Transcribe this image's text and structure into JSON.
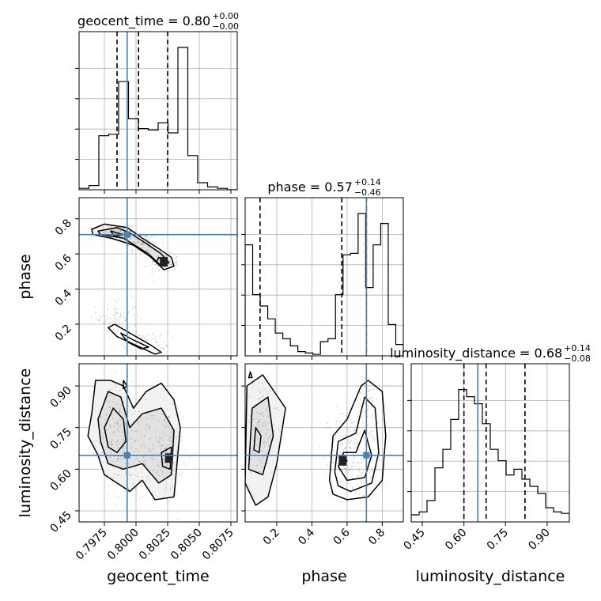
{
  "chart_data": {
    "type": "corner",
    "parameters": [
      "geocent_time",
      "phase",
      "luminosity_distance"
    ],
    "axis_labels": {
      "geocent_time": "geocent_time",
      "phase": "phase",
      "luminosity_distance": "luminosity_distance"
    },
    "titles": [
      {
        "param": "geocent_time",
        "name": "geocent_time",
        "median": "0.80",
        "plus": "+0.00",
        "minus": "−0.00"
      },
      {
        "param": "phase",
        "name": "phase",
        "median": "0.57",
        "plus": "+0.14",
        "minus": "−0.46"
      },
      {
        "param": "luminosity_distance",
        "name": "luminosity_distance",
        "median": "0.68",
        "plus": "+0.14",
        "minus": "−0.08"
      }
    ],
    "ranges": {
      "geocent_time": [
        0.7955,
        0.808
      ],
      "phase": [
        0.02,
        0.92
      ],
      "luminosity_distance": [
        0.41,
        0.98
      ]
    },
    "ticks": {
      "geocent_time": {
        "values": [
          0.7975,
          0.8,
          0.8025,
          0.805,
          0.8075
        ],
        "labels": [
          "0.7975",
          "0.8000",
          "0.8025",
          "0.8050",
          "0.8075"
        ]
      },
      "phase": {
        "values": [
          0.2,
          0.4,
          0.6,
          0.8
        ],
        "labels": [
          "0.2",
          "0.4",
          "0.6",
          "0.8"
        ]
      },
      "luminosity_distance": {
        "values": [
          0.45,
          0.6,
          0.75,
          0.9
        ],
        "labels": [
          "0.45",
          "0.60",
          "0.75",
          "0.90"
        ]
      }
    },
    "truths": {
      "geocent_time": 0.7993,
      "phase": 0.71,
      "luminosity_distance": 0.65
    },
    "quantiles": {
      "geocent_time": [
        0.7985,
        0.8002,
        0.8025
      ],
      "phase": [
        0.105,
        0.57,
        0.71
      ],
      "luminosity_distance": [
        0.6,
        0.68,
        0.82
      ]
    },
    "histograms": {
      "geocent_time": [
        0.01,
        0.03,
        0.38,
        0.39,
        0.76,
        0.5,
        0.43,
        0.42,
        0.47,
        0.4,
        1.0,
        0.24,
        0.05,
        0.02,
        0.01,
        0.0
      ],
      "phase": [
        0.78,
        0.43,
        0.35,
        0.26,
        0.16,
        0.12,
        0.07,
        0.03,
        0.02,
        0.01,
        0.1,
        0.12,
        0.43,
        0.71,
        0.72,
        1.0,
        0.48,
        0.78,
        0.93,
        0.22,
        0.08
      ],
      "luminosity_distance": [
        0.05,
        0.07,
        0.15,
        0.38,
        0.51,
        0.72,
        0.93,
        0.88,
        0.83,
        0.69,
        0.51,
        0.43,
        0.33,
        0.37,
        0.3,
        0.25,
        0.2,
        0.1,
        0.07,
        0.06
      ]
    },
    "grid": true,
    "hist_bins": {
      "geocent_time": 16,
      "phase": 21,
      "luminosity_distance": 20
    },
    "style": {
      "truth_color": "#4682b4",
      "quantile_style": "dashed",
      "contour_color": "#000000"
    }
  }
}
